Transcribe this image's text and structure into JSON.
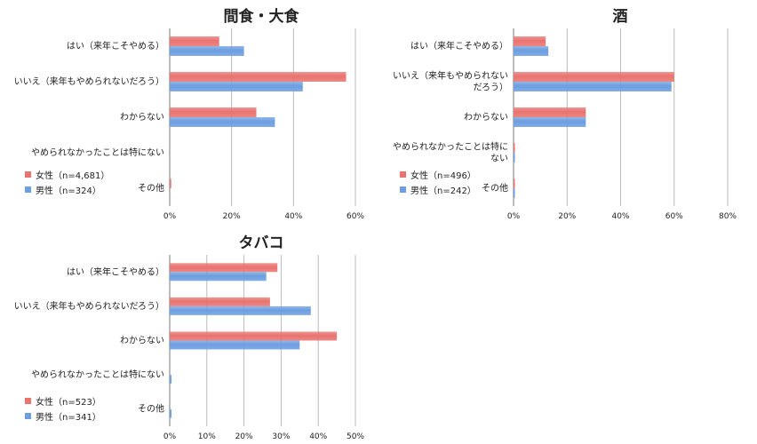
{
  "colors": {
    "female": "#e8736f",
    "male": "#6c9ee0",
    "grid": "#bbbbbb",
    "axis": "#777777"
  },
  "chart_data": [
    {
      "type": "bar",
      "orientation": "horizontal",
      "title": "間食・大食",
      "categories": [
        "はい（来年こそやめる）",
        "いいえ（来年もやめられないだろう）",
        "わからない",
        "やめられなかったことは特にない",
        "その他"
      ],
      "series": [
        {
          "name": "女性（n=4,681）",
          "values": [
            16,
            57,
            28,
            0,
            0.5
          ]
        },
        {
          "name": "男性（n=324）",
          "values": [
            24,
            43,
            34,
            0,
            0
          ]
        }
      ],
      "xlim": [
        0,
        60
      ],
      "xticks": [
        "0%",
        "20%",
        "40%",
        "60%"
      ],
      "grid": true,
      "legend": "bottom-left"
    },
    {
      "type": "bar",
      "orientation": "horizontal",
      "title": "酒",
      "categories": [
        "はい（来年こそやめる）",
        "いいえ（来年もやめられない\nだろう）",
        "わからない",
        "やめられなかったことは特に\nない",
        "その他"
      ],
      "series": [
        {
          "name": "女性（n=496）",
          "values": [
            12,
            60,
            27,
            0.5,
            0.5
          ]
        },
        {
          "name": "男性（n=242）",
          "values": [
            13,
            59,
            27,
            0.5,
            0.5
          ]
        }
      ],
      "xlim": [
        0,
        80
      ],
      "xticks": [
        "0%",
        "20%",
        "40%",
        "60%",
        "80%"
      ],
      "grid": true,
      "legend": "bottom-left"
    },
    {
      "type": "bar",
      "orientation": "horizontal",
      "title": "タバコ",
      "categories": [
        "はい（来年こそやめる）",
        "いいえ（来年もやめられないだろう）",
        "わからない",
        "やめられなかったことは特にない",
        "その他"
      ],
      "series": [
        {
          "name": "女性（n=523）",
          "values": [
            29,
            27,
            45,
            0,
            0
          ]
        },
        {
          "name": "男性（n=341）",
          "values": [
            26,
            38,
            35,
            0.5,
            0.5
          ]
        }
      ],
      "xlim": [
        0,
        50
      ],
      "xticks": [
        "0%",
        "10%",
        "20%",
        "30%",
        "40%",
        "50%"
      ],
      "grid": true,
      "legend": "bottom-left"
    }
  ]
}
